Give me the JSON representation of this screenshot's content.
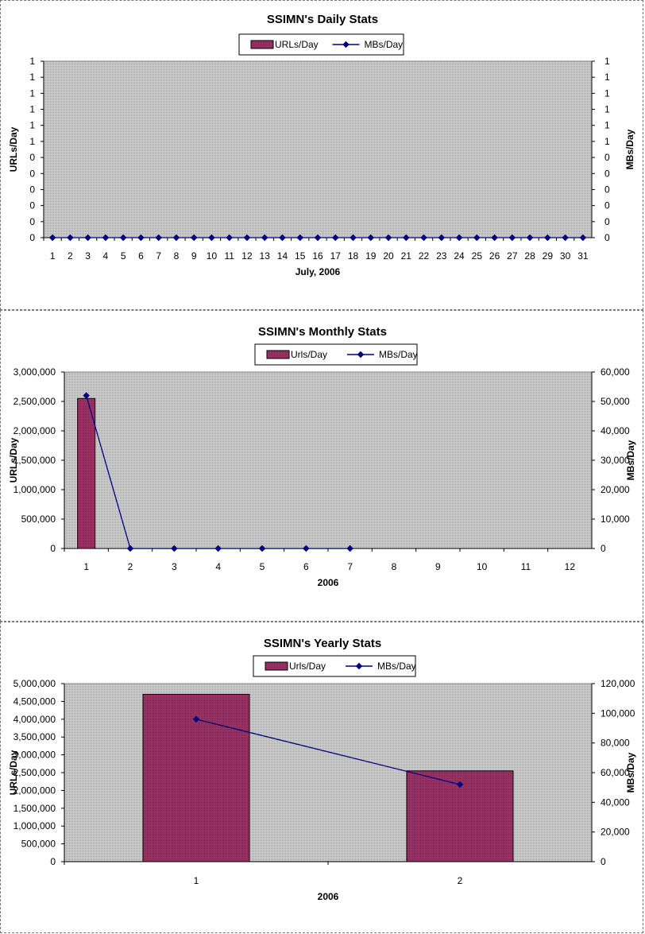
{
  "chart_data": [
    {
      "type": "bar",
      "title": "SSIMN's Daily Stats",
      "xlabel": "July, 2006",
      "ylabel": "URLs/Day",
      "y2label": "MBs/Day",
      "categories": [
        "1",
        "2",
        "3",
        "4",
        "5",
        "6",
        "7",
        "8",
        "9",
        "10",
        "11",
        "12",
        "13",
        "14",
        "15",
        "16",
        "17",
        "18",
        "19",
        "20",
        "21",
        "22",
        "23",
        "24",
        "25",
        "26",
        "27",
        "28",
        "29",
        "30",
        "31"
      ],
      "y_tick_labels": [
        "0",
        "0",
        "0",
        "0",
        "0",
        "0",
        "1",
        "1",
        "1",
        "1",
        "1",
        "1"
      ],
      "y2_tick_labels": [
        "0",
        "0",
        "0",
        "0",
        "0",
        "0",
        "1",
        "1",
        "1",
        "1",
        "1",
        "1"
      ],
      "legend_position": "top",
      "grid": false,
      "series": [
        {
          "name": "URLs/Day",
          "kind": "bar",
          "axis": "left",
          "color": "#993366",
          "values": [
            0,
            0,
            0,
            0,
            0,
            0,
            0,
            0,
            0,
            0,
            0,
            0,
            0,
            0,
            0,
            0,
            0,
            0,
            0,
            0,
            0,
            0,
            0,
            0,
            0,
            0,
            0,
            0,
            0,
            0,
            0
          ]
        },
        {
          "name": "MBs/Day",
          "kind": "line",
          "axis": "right",
          "color": "#000080",
          "values": [
            0,
            0,
            0,
            0,
            0,
            0,
            0,
            0,
            0,
            0,
            0,
            0,
            0,
            0,
            0,
            0,
            0,
            0,
            0,
            0,
            0,
            0,
            0,
            0,
            0,
            0,
            0,
            0,
            0,
            0,
            0
          ]
        }
      ]
    },
    {
      "type": "bar",
      "title": "SSIMN's Monthly Stats",
      "xlabel": "2006",
      "ylabel": "URLs/Day",
      "y2label": "MBs/Day",
      "categories": [
        "1",
        "2",
        "3",
        "4",
        "5",
        "6",
        "7",
        "8",
        "9",
        "10",
        "11",
        "12"
      ],
      "y_tick_labels": [
        "0",
        "500,000",
        "1,000,000",
        "1,500,000",
        "2,000,000",
        "2,500,000",
        "3,000,000"
      ],
      "y2_tick_labels": [
        "0",
        "10,000",
        "20,000",
        "30,000",
        "40,000",
        "50,000",
        "60,000"
      ],
      "ylim": [
        0,
        3000000
      ],
      "y2lim": [
        0,
        60000
      ],
      "legend_position": "top",
      "grid": false,
      "series": [
        {
          "name": "Urls/Day",
          "kind": "bar",
          "axis": "left",
          "color": "#993366",
          "values": [
            2550000,
            0,
            0,
            0,
            0,
            0,
            0,
            null,
            null,
            null,
            null,
            null
          ]
        },
        {
          "name": "MBs/Day",
          "kind": "line",
          "axis": "right",
          "color": "#000080",
          "values": [
            52000,
            0,
            0,
            0,
            0,
            0,
            0,
            null,
            null,
            null,
            null,
            null
          ]
        }
      ]
    },
    {
      "type": "bar",
      "title": "SSIMN's Yearly Stats",
      "xlabel": "2006",
      "ylabel": "URLs/Day",
      "y2label": "MBs/Day",
      "categories": [
        "1",
        "2"
      ],
      "y_tick_labels": [
        "0",
        "500,000",
        "1,000,000",
        "1,500,000",
        "2,000,000",
        "2,500,000",
        "3,000,000",
        "3,500,000",
        "4,000,000",
        "4,500,000",
        "5,000,000"
      ],
      "y2_tick_labels": [
        "0",
        "20,000",
        "40,000",
        "60,000",
        "80,000",
        "100,000",
        "120,000"
      ],
      "ylim": [
        0,
        5000000
      ],
      "y2lim": [
        0,
        120000
      ],
      "legend_position": "top",
      "grid": false,
      "series": [
        {
          "name": "Urls/Day",
          "kind": "bar",
          "axis": "left",
          "color": "#993366",
          "values": [
            4700000,
            2550000
          ]
        },
        {
          "name": "MBs/Day",
          "kind": "line",
          "axis": "right",
          "color": "#000080",
          "values": [
            96000,
            52000
          ]
        }
      ]
    }
  ]
}
